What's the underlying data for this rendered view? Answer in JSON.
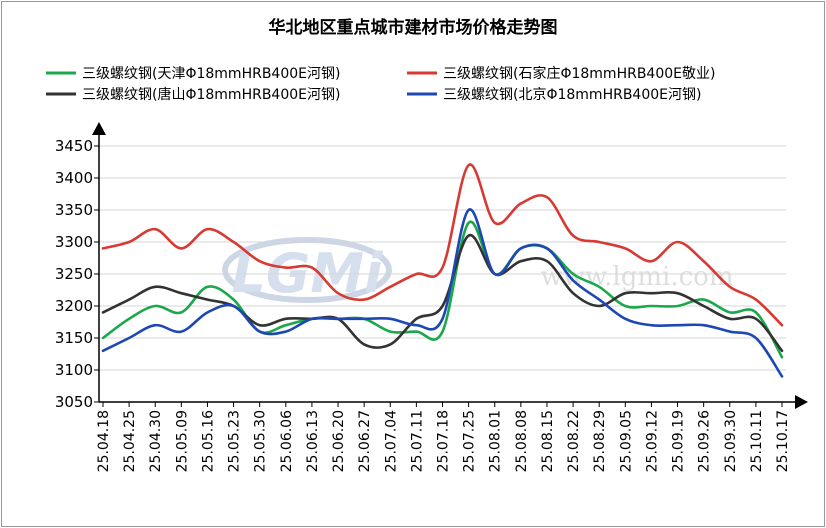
{
  "chart_data": {
    "type": "line",
    "title": "华北地区重点城市建材市场价格走势图",
    "xlabel": "",
    "ylabel": "",
    "ylim": [
      3050,
      3450
    ],
    "yticks": [
      3050,
      3100,
      3150,
      3200,
      3250,
      3300,
      3350,
      3400,
      3450
    ],
    "grid": true,
    "legend_position": "top",
    "categories": [
      "25.04.18",
      "25.04.25",
      "25.04.30",
      "25.05.09",
      "25.05.16",
      "25.05.23",
      "25.05.30",
      "25.06.06",
      "25.06.13",
      "25.06.20",
      "25.06.27",
      "25.07.04",
      "25.07.11",
      "25.07.18",
      "25.07.25",
      "25.08.01",
      "25.08.08",
      "25.08.15",
      "25.08.22",
      "25.08.29",
      "25.09.05",
      "25.09.12",
      "25.09.19",
      "25.09.26",
      "25.09.30",
      "25.10.11",
      "25.10.17"
    ],
    "series": [
      {
        "name": "三级螺纹钢(天津Φ18mmHRB400E河钢)",
        "color": "#1aa84a",
        "values": [
          3150,
          3180,
          3200,
          3190,
          3230,
          3210,
          3160,
          3170,
          3180,
          3180,
          3180,
          3160,
          3160,
          3160,
          3330,
          3250,
          3290,
          3290,
          3250,
          3230,
          3200,
          3200,
          3200,
          3210,
          3190,
          3190,
          3120
        ]
      },
      {
        "name": "三级螺纹钢(石家庄Φ18mmHRB400E敬业)",
        "color": "#d63a33",
        "values": [
          3290,
          3300,
          3320,
          3290,
          3320,
          3300,
          3270,
          3260,
          3260,
          3220,
          3210,
          3230,
          3250,
          3260,
          3420,
          3330,
          3360,
          3370,
          3310,
          3300,
          3290,
          3270,
          3300,
          3270,
          3230,
          3210,
          3170
        ]
      },
      {
        "name": "三级螺纹钢(唐山Φ18mmHRB400E河钢)",
        "color": "#333333",
        "values": [
          3190,
          3210,
          3230,
          3220,
          3210,
          3200,
          3170,
          3180,
          3180,
          3180,
          3140,
          3140,
          3180,
          3200,
          3310,
          3250,
          3270,
          3270,
          3220,
          3200,
          3220,
          3220,
          3220,
          3200,
          3180,
          3180,
          3130
        ]
      },
      {
        "name": "三级螺纹钢(北京Φ18mmHRB400E河钢)",
        "color": "#1e47b4",
        "values": [
          3130,
          3150,
          3170,
          3160,
          3190,
          3200,
          3160,
          3160,
          3180,
          3180,
          3180,
          3180,
          3170,
          3180,
          3350,
          3250,
          3290,
          3290,
          3240,
          3210,
          3180,
          3170,
          3170,
          3170,
          3160,
          3150,
          3090
        ]
      }
    ],
    "watermark": {
      "logo_text": "LGMi",
      "url_text": "www.lgmi.com"
    }
  }
}
